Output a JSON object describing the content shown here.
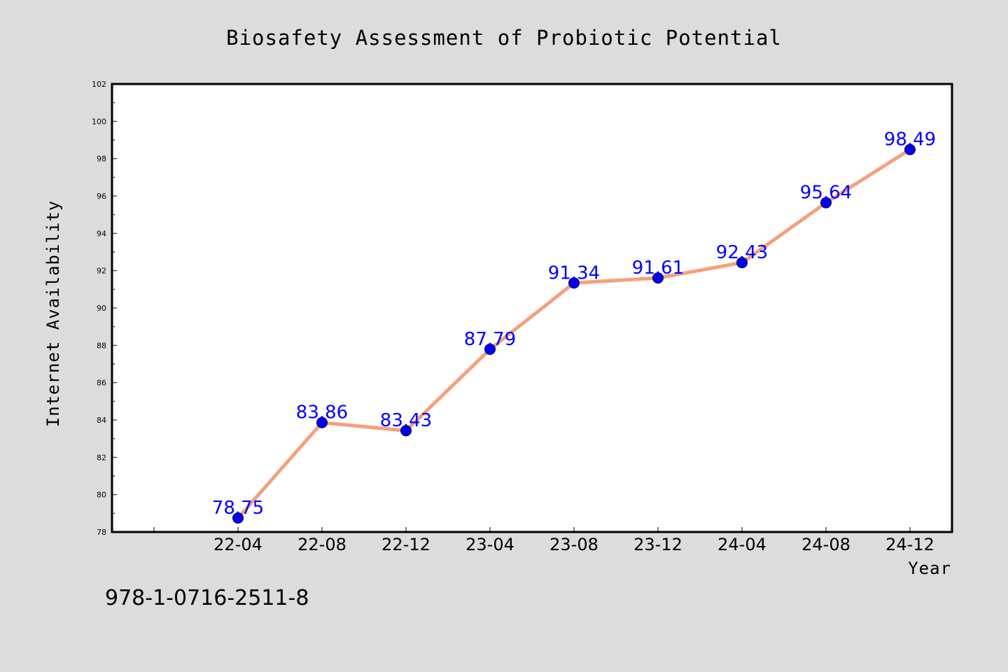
{
  "chart_data": {
    "type": "line",
    "title": "Biosafety Assessment of Probiotic Potential",
    "xlabel": "Year",
    "ylabel": "Internet Availability",
    "categories": [
      "22-04",
      "22-08",
      "22-12",
      "23-04",
      "23-08",
      "23-12",
      "24-04",
      "24-08",
      "24-12"
    ],
    "series": [
      {
        "values": [
          78.75,
          83.86,
          83.43,
          87.79,
          91.34,
          91.61,
          92.43,
          95.64,
          98.49
        ],
        "data_labels": [
          "78.75",
          "83.86",
          "83.43",
          "87.79",
          "91.34",
          "91.61",
          "92.43",
          "95.64",
          "98.49"
        ]
      }
    ],
    "ylim": [
      78,
      102
    ],
    "y_major_ticks": [
      78,
      80,
      82,
      84,
      86,
      88,
      90,
      92,
      94,
      96,
      98,
      100,
      102
    ],
    "grid": false,
    "legend": "none",
    "colors": {
      "line": "#f4a07e",
      "marker": "#0000ee",
      "data_label": "#0000ff",
      "plot_background": "#ffffff",
      "figure_background": "#dcdcdc"
    }
  },
  "watermark": {
    "text": "978-1-0716-2511-8"
  }
}
